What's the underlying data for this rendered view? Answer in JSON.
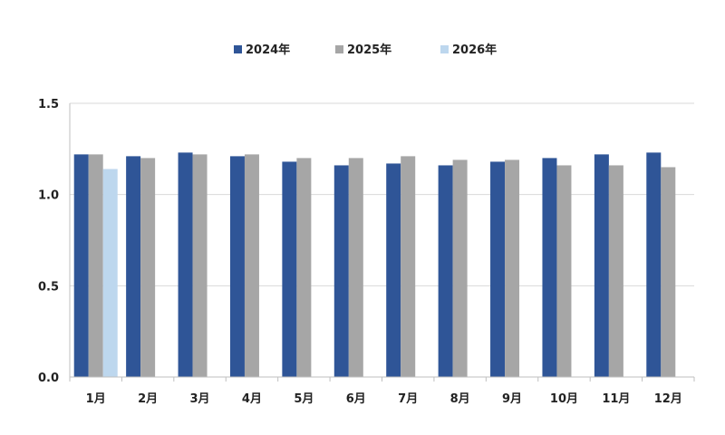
{
  "chart_data": {
    "type": "bar",
    "categories": [
      "1月",
      "2月",
      "3月",
      "4月",
      "5月",
      "6月",
      "7月",
      "8月",
      "9月",
      "10月",
      "11月",
      "12月"
    ],
    "series": [
      {
        "name": "2024年",
        "values": [
          1.22,
          1.21,
          1.23,
          1.21,
          1.18,
          1.16,
          1.17,
          1.16,
          1.18,
          1.2,
          1.22,
          1.23
        ]
      },
      {
        "name": "2025年",
        "values": [
          1.22,
          1.2,
          1.22,
          1.22,
          1.2,
          1.2,
          1.21,
          1.19,
          1.19,
          1.16,
          1.16,
          1.15
        ]
      },
      {
        "name": "2026年",
        "values": [
          1.14,
          null,
          null,
          null,
          null,
          null,
          null,
          null,
          null,
          null,
          null,
          null
        ]
      }
    ],
    "colors": [
      "#2f5597",
      "#a6a6a6",
      "#bdd7ee"
    ],
    "yticks": [
      "0.0",
      "0.5",
      "1.0",
      "1.5"
    ],
    "ylim": [
      0,
      1.5
    ],
    "grid": true,
    "legend": "top-center"
  }
}
